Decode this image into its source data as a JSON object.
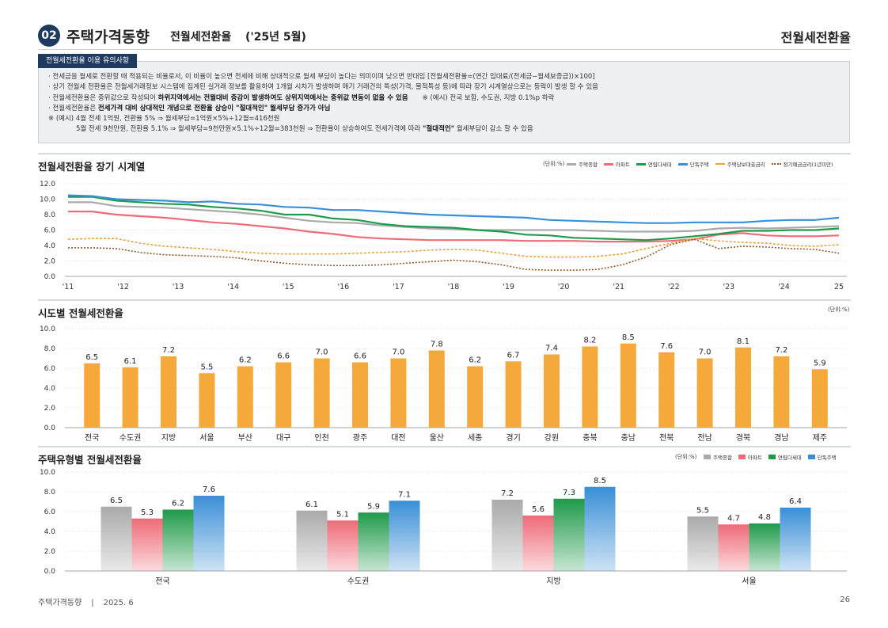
{
  "header": {
    "badge": "02",
    "title": "주택가격동향",
    "subtitle": "전월세전환율",
    "period": "('25년 5월)",
    "right_title": "전월세전환율"
  },
  "notice": {
    "tab": "전월세전환율 이용 유의사항",
    "line1": "· 전세금을 월세로 전환할 때 적용되는 비율로서, 이 비율이 높으면 전세에 비해 상대적으로 월세 부담이 높다는 의미이며 낮으면 반대임 [전월세전환율=(연간 임대료/(전세금−월세보증금))×100]",
    "line2": "· 상기 전월세 전환율은 전월세거래정보 시스템에 집계된 실거래 정보를 활용하여 1개월 시차가 발생하며 매기 거래건의 특성(가격, 물적특성 등)에 따라 장기 시계열상으로는 등락이 발생 할 수 있음",
    "line3a": "· 전월세전환율은 중위값으로 작성되어 ",
    "line3b": "하위지역에서는 전월대비 증감이 발생하여도 상위지역에서는 중위값 변동이 없을 수 있음",
    "line3c": "※ (예시) 전국 보합, 수도권, 지방 0.1%p 하락",
    "line4a": "· 전월세전환율은 ",
    "line4b": "전세가격 대비 상대적인 개념으로 전환율 상승이 \"절대적인\" 월세부담 증가가 아님",
    "line5": "※ (예시) 4월 전세 1억원, 전환율 5% ⇒ 월세부담=1억원×5%÷12월=416천원",
    "line6a": "5월 전세 9천만원, 전환율 5.1% ⇒ 월세부담=9천만원×5.1%÷12월=383천원 ⇒ 전환율이 상승하여도 전세가격에 따라 ",
    "line6b": "\"절대적인\"",
    "line6c": " 월세부담이 감소 할 수 있음"
  },
  "chart1_head": {
    "title": "전월세전환율 장기 시계열",
    "unit": "(단위:%)"
  },
  "chart2_head": {
    "title": "시도별 전월세전환율",
    "unit": "(단위:%)"
  },
  "chart3_head": {
    "title": "주택유형별 전월세전환율",
    "unit": "(단위:%)"
  },
  "chart_data": [
    {
      "type": "line",
      "title": "전월세전환율 장기 시계열",
      "x_ticks": [
        "'11",
        "'12",
        "'13",
        "'14",
        "'15",
        "'16",
        "'17",
        "'18",
        "'19",
        "'20",
        "'21",
        "'22",
        "'23",
        "'24",
        "25"
      ],
      "ylim": [
        0,
        12
      ],
      "y_ticks": [
        "0.0",
        "2.0",
        "4.0",
        "6.0",
        "8.0",
        "10.0",
        "12.0"
      ],
      "grid": true,
      "legend_position": "top-right",
      "series": [
        {
          "name": "주택종합",
          "color": "#aaaaaa",
          "style": "solid",
          "values": [
            9.6,
            9.6,
            9.1,
            9.0,
            8.9,
            8.7,
            8.5,
            8.3,
            8.0,
            7.6,
            7.2,
            7.0,
            6.9,
            6.6,
            6.4,
            6.2,
            6.1,
            6.0,
            6.0,
            6.0,
            6.0,
            6.0,
            5.9,
            5.8,
            5.8,
            5.8,
            5.9,
            6.2,
            6.3,
            6.2,
            6.3,
            6.4,
            6.5
          ]
        },
        {
          "name": "아파트",
          "color": "#ee6b78",
          "style": "solid",
          "values": [
            8.4,
            8.4,
            8.0,
            7.8,
            7.6,
            7.3,
            7.0,
            6.8,
            6.5,
            6.2,
            5.8,
            5.5,
            5.1,
            4.9,
            4.8,
            4.7,
            4.7,
            4.7,
            4.7,
            4.6,
            4.6,
            4.6,
            4.5,
            4.5,
            4.5,
            4.6,
            4.8,
            5.4,
            5.6,
            5.3,
            5.2,
            5.2,
            5.3
          ]
        },
        {
          "name": "연립다세대",
          "color": "#1f9a4a",
          "style": "solid",
          "values": [
            10.3,
            10.3,
            9.8,
            9.6,
            9.4,
            9.3,
            9.0,
            8.8,
            8.5,
            8.0,
            8.0,
            7.5,
            7.3,
            6.8,
            6.5,
            6.4,
            6.3,
            6.0,
            5.8,
            5.4,
            5.3,
            5.0,
            4.9,
            4.8,
            4.7,
            4.9,
            5.2,
            5.5,
            5.9,
            5.9,
            6.0,
            6.0,
            6.2
          ]
        },
        {
          "name": "단독주택",
          "color": "#3a8fd6",
          "style": "solid",
          "values": [
            10.5,
            10.4,
            10.0,
            9.9,
            9.8,
            9.6,
            9.7,
            9.4,
            9.3,
            9.0,
            8.9,
            8.6,
            8.6,
            8.4,
            8.2,
            8.0,
            7.9,
            7.8,
            7.7,
            7.6,
            7.3,
            7.2,
            7.1,
            7.0,
            6.9,
            6.9,
            7.0,
            7.0,
            7.0,
            7.2,
            7.3,
            7.3,
            7.6
          ]
        },
        {
          "name": "주택담보대출금리",
          "color": "#e8a33c",
          "style": "dashed",
          "values": [
            4.8,
            4.9,
            4.9,
            4.3,
            3.9,
            3.7,
            3.5,
            3.2,
            3.0,
            2.9,
            2.9,
            2.9,
            3.0,
            3.1,
            3.2,
            3.4,
            3.5,
            3.4,
            3.0,
            2.6,
            2.5,
            2.5,
            2.6,
            2.9,
            3.6,
            4.3,
            4.9,
            4.6,
            4.4,
            4.3,
            4.0,
            3.9,
            4.1
          ]
        },
        {
          "name": "정기예금금리(1년미만)",
          "color": "#8b5a2b",
          "style": "dotted",
          "values": [
            3.7,
            3.7,
            3.6,
            3.1,
            2.8,
            2.7,
            2.6,
            2.4,
            2.0,
            1.7,
            1.5,
            1.4,
            1.4,
            1.5,
            1.7,
            1.9,
            2.1,
            1.9,
            1.5,
            0.9,
            0.8,
            0.8,
            0.9,
            1.5,
            2.5,
            4.1,
            4.8,
            3.6,
            3.9,
            3.8,
            3.6,
            3.5,
            3.0
          ]
        }
      ]
    },
    {
      "type": "bar",
      "title": "시도별 전월세전환율",
      "categories": [
        "전국",
        "수도권",
        "지방",
        "서울",
        "부산",
        "대구",
        "인천",
        "광주",
        "대전",
        "울산",
        "세종",
        "경기",
        "강원",
        "충북",
        "충남",
        "전북",
        "전남",
        "경북",
        "경남",
        "제주"
      ],
      "values": [
        6.5,
        6.1,
        7.2,
        5.5,
        6.2,
        6.6,
        7.0,
        6.6,
        7.0,
        7.8,
        6.2,
        6.7,
        7.4,
        8.2,
        8.5,
        7.6,
        7.0,
        8.1,
        7.2,
        5.9
      ],
      "ylim": [
        0,
        10
      ],
      "y_ticks": [
        "0.0",
        "2.0",
        "4.0",
        "6.0",
        "8.0",
        "10.0"
      ],
      "color": "#f5a93a"
    },
    {
      "type": "bar",
      "title": "주택유형별 전월세전환율",
      "categories": [
        "전국",
        "수도권",
        "지방",
        "서울"
      ],
      "ylim": [
        0,
        10
      ],
      "y_ticks": [
        "0.0",
        "2.0",
        "4.0",
        "6.0",
        "8.0",
        "10.0"
      ],
      "legend_position": "top-right",
      "series": [
        {
          "name": "주택종합",
          "color": "#aaaaaa",
          "values": [
            6.5,
            6.1,
            7.2,
            5.5
          ]
        },
        {
          "name": "아파트",
          "color": "#ee6b78",
          "values": [
            5.3,
            5.1,
            5.6,
            4.7
          ]
        },
        {
          "name": "연립다세대",
          "color": "#1f9a4a",
          "values": [
            6.2,
            5.9,
            7.3,
            4.8
          ]
        },
        {
          "name": "단독주택",
          "color": "#3a8fd6",
          "values": [
            7.6,
            7.1,
            8.5,
            6.4
          ]
        }
      ]
    }
  ],
  "footer": {
    "left": "주택가격동향",
    "sep": "|",
    "date": "2025. 6",
    "page": "26"
  }
}
